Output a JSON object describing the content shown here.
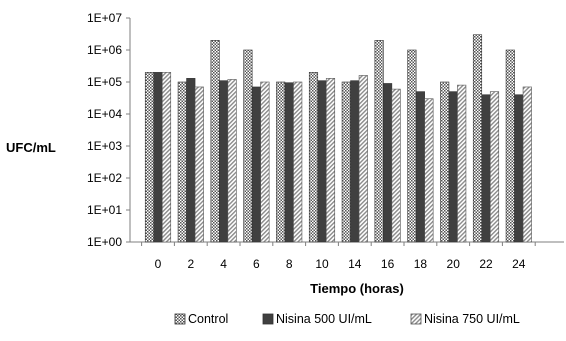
{
  "chart_data": {
    "type": "bar",
    "title": "",
    "xlabel": "Tiempo (horas)",
    "ylabel": "UFC/mL",
    "yscale": "log",
    "ylim": [
      1,
      10000000
    ],
    "yticks": [
      "1E+00",
      "1E+01",
      "1E+02",
      "1E+03",
      "1E+04",
      "1E+05",
      "1E+06",
      "1E+07"
    ],
    "categories": [
      "0",
      "2",
      "4",
      "6",
      "8",
      "10",
      "14",
      "16",
      "18",
      "20",
      "22",
      "24"
    ],
    "grid": false,
    "legend": "bottom",
    "series": [
      {
        "name": "Control",
        "values": [
          200000,
          100000,
          2000000,
          1000000,
          100000,
          200000,
          100000,
          2000000,
          1000000,
          100000,
          3000000,
          1000000
        ]
      },
      {
        "name": "Nisina 500 UI/mL",
        "values": [
          200000,
          130000,
          110000,
          70000,
          95000,
          110000,
          110000,
          90000,
          50000,
          50000,
          40000,
          40000
        ]
      },
      {
        "name": "Nisina 750 UI/mL",
        "values": [
          200000,
          70000,
          120000,
          100000,
          100000,
          130000,
          160000,
          60000,
          30000,
          80000,
          50000,
          70000
        ]
      }
    ]
  }
}
